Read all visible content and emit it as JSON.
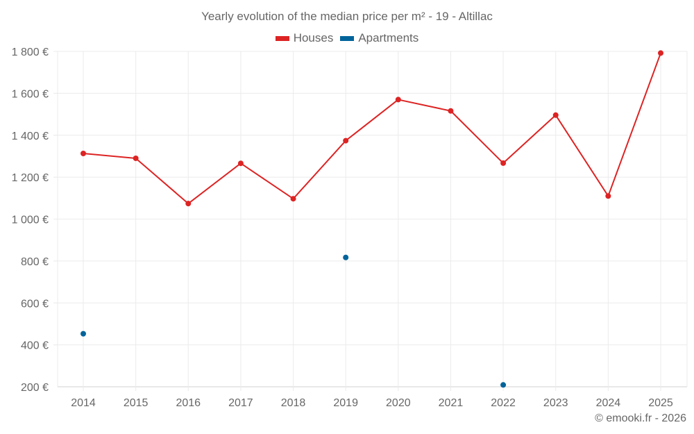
{
  "chart_data": {
    "type": "line",
    "title": "Yearly evolution of the median price per m² - 19 - Altillac",
    "xlabel": "",
    "ylabel": "",
    "categories": [
      "2014",
      "2015",
      "2016",
      "2017",
      "2018",
      "2019",
      "2020",
      "2021",
      "2022",
      "2023",
      "2024",
      "2025"
    ],
    "series": [
      {
        "name": "Houses",
        "color": "#dd2323",
        "values": [
          1313,
          1290,
          1074,
          1266,
          1097,
          1374,
          1570,
          1516,
          1267,
          1496,
          1110,
          1792
        ]
      },
      {
        "name": "Apartments",
        "color": "#00649b",
        "values": [
          453,
          null,
          null,
          null,
          null,
          817,
          null,
          null,
          209,
          null,
          null,
          null
        ]
      }
    ],
    "ylim": [
      200,
      1800
    ],
    "yticks": [
      200,
      400,
      600,
      800,
      1000,
      1200,
      1400,
      1600,
      1800
    ],
    "ytick_labels": [
      "200 €",
      "400 €",
      "600 €",
      "800 €",
      "1 000 €",
      "1 200 €",
      "1 400 €",
      "1 600 €",
      "1 800 €"
    ],
    "grid": true,
    "legend_position": "top"
  },
  "header": {
    "title": "Yearly evolution of the median price per m² - 19 - Altillac"
  },
  "legend": {
    "items": [
      {
        "label": "Houses",
        "color": "#dd2323"
      },
      {
        "label": "Apartments",
        "color": "#00649b"
      }
    ]
  },
  "footer": {
    "credit": "© emooki.fr - 2026"
  }
}
